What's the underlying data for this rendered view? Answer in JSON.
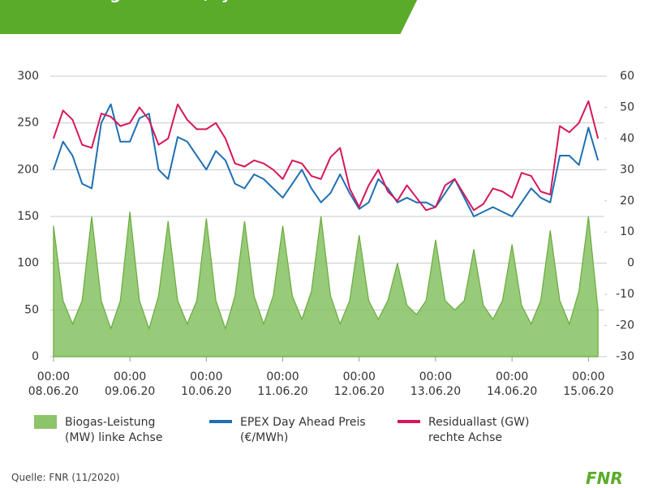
{
  "chart_data": {
    "type": "line",
    "title": "Modulierung bei Netz-/Systemdienlichkeit von flexibilisierten Biogasanlagen",
    "source": "Quelle: FNR (11/2020)",
    "logo": "FNR",
    "x": [
      0,
      3,
      6,
      9,
      12,
      15,
      18,
      21,
      24,
      27,
      30,
      33,
      36,
      39,
      42,
      45,
      48,
      51,
      54,
      57,
      60,
      63,
      66,
      69,
      72,
      75,
      78,
      81,
      84,
      87,
      90,
      93,
      96,
      99,
      102,
      105,
      108,
      111,
      114,
      117,
      120,
      123,
      126,
      129,
      132,
      135,
      138,
      141,
      144,
      147,
      150,
      153,
      156,
      159,
      162,
      165,
      168,
      171
    ],
    "xlim": [
      -1,
      173
    ],
    "xticks": [
      {
        "value": 0,
        "label": "00:00 08.06.20"
      },
      {
        "value": 24,
        "label": "00:00 09.06.20"
      },
      {
        "value": 48,
        "label": "00:00 10.06.20"
      },
      {
        "value": 72,
        "label": "00:00 11.06.20"
      },
      {
        "value": 96,
        "label": "00:00 12.06.20"
      },
      {
        "value": 120,
        "label": "00:00 13.06.20"
      },
      {
        "value": 144,
        "label": "00:00 14.06.20"
      },
      {
        "value": 168,
        "label": "00:00 15.06.20"
      }
    ],
    "ylim": [
      0,
      300
    ],
    "yticks": [
      0,
      50,
      100,
      150,
      200,
      250,
      300
    ],
    "y2lim": [
      -30,
      60
    ],
    "y2ticks": [
      -30,
      -20,
      -10,
      0,
      10,
      20,
      30,
      40,
      50,
      60
    ],
    "grid": true,
    "legend": "bottom",
    "series": [
      {
        "name": "Biogas-Leistung (MW) linke Achse",
        "color": "#8cc46a",
        "style": "area",
        "axis": "y",
        "values": [
          140,
          60,
          35,
          60,
          150,
          60,
          30,
          60,
          155,
          60,
          30,
          65,
          145,
          60,
          35,
          60,
          148,
          60,
          30,
          65,
          145,
          65,
          35,
          65,
          140,
          65,
          40,
          70,
          150,
          65,
          35,
          60,
          130,
          60,
          40,
          60,
          100,
          55,
          45,
          60,
          125,
          60,
          50,
          60,
          115,
          55,
          40,
          60,
          120,
          55,
          35,
          60,
          135,
          60,
          35,
          70,
          150,
          50
        ]
      },
      {
        "name": "EPEX Day Ahead Preis (€/MWh)",
        "color": "#1f6fb2",
        "style": "line",
        "axis": "y",
        "values": [
          200,
          230,
          215,
          185,
          180,
          250,
          270,
          230,
          230,
          255,
          260,
          200,
          190,
          235,
          230,
          215,
          200,
          220,
          210,
          185,
          180,
          195,
          190,
          180,
          170,
          185,
          200,
          180,
          165,
          175,
          195,
          175,
          158,
          165,
          190,
          180,
          165,
          170,
          165,
          165,
          160,
          175,
          190,
          170,
          150,
          155,
          160,
          155,
          150,
          165,
          180,
          170,
          165,
          215,
          215,
          205,
          245,
          210
        ]
      },
      {
        "name": "Residuallast (GW) rechte Achse",
        "color": "#d6175c",
        "style": "line",
        "axis": "y2",
        "values": [
          40,
          49,
          46,
          38,
          37,
          48,
          47,
          44,
          45,
          50,
          46,
          38,
          40,
          51,
          46,
          43,
          43,
          45,
          40,
          32,
          31,
          33,
          32,
          30,
          27,
          33,
          32,
          28,
          27,
          34,
          37,
          24,
          18,
          25,
          30,
          23,
          20,
          25,
          21,
          17,
          18,
          25,
          27,
          22,
          17,
          19,
          24,
          23,
          21,
          29,
          28,
          23,
          22,
          44,
          42,
          45,
          52,
          40
        ]
      }
    ]
  }
}
